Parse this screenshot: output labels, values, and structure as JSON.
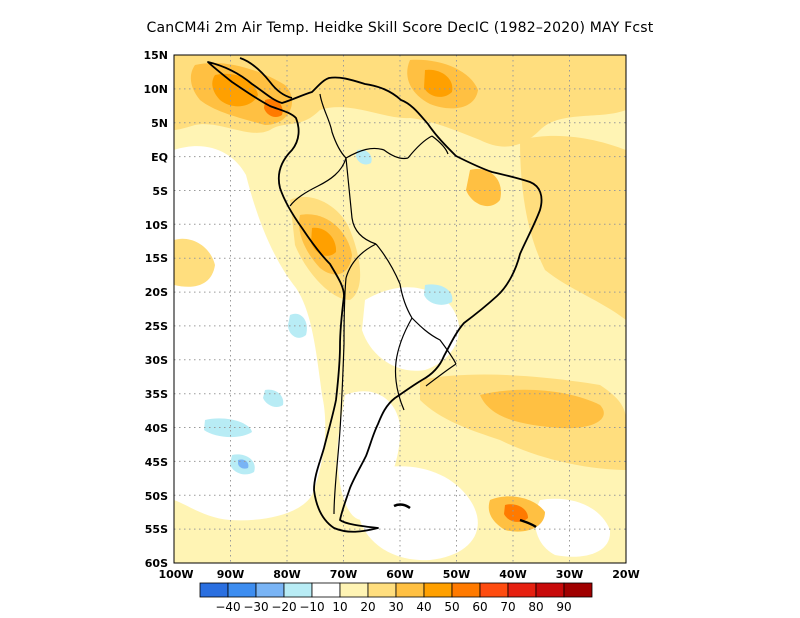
{
  "title": "CanCM4i  2m Air Temp. Heidke Skill Score DecIC (1982–2020) MAY Fcst",
  "map": {
    "lon_range": [
      -100,
      -20
    ],
    "lat_range": [
      -60,
      15
    ],
    "lat_labels": [
      "15N",
      "10N",
      "5N",
      "EQ",
      "5S",
      "10S",
      "15S",
      "20S",
      "25S",
      "30S",
      "35S",
      "40S",
      "45S",
      "50S",
      "55S",
      "60S"
    ],
    "lon_labels": [
      "100W",
      "90W",
      "80W",
      "70W",
      "60W",
      "50W",
      "40W",
      "30W",
      "20W"
    ],
    "gridlines": "dotted"
  },
  "colorbar": {
    "colors": [
      "#2a6fe0",
      "#3d8df0",
      "#79b4f5",
      "#b8ecf5",
      "#ffffff",
      "#fff4b4",
      "#ffde7e",
      "#ffc042",
      "#ffa000",
      "#ff7a00",
      "#ff4c10",
      "#e62010",
      "#c80a0a",
      "#a00000"
    ],
    "labels": [
      "−40",
      "−30",
      "−20",
      "−10",
      "10",
      "20",
      "30",
      "40",
      "50",
      "60",
      "70",
      "80",
      "90"
    ]
  }
}
